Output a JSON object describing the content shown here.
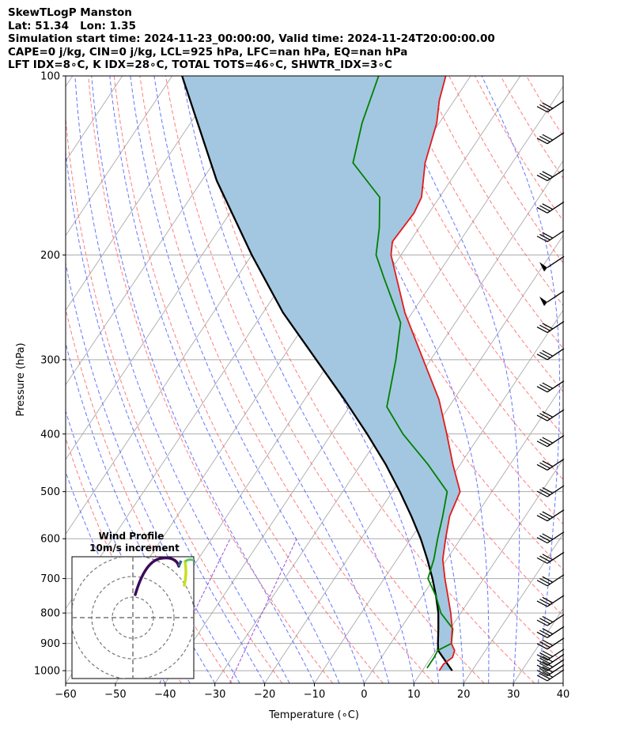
{
  "header": {
    "line1": "SkewTLogP Manston",
    "line2": "Lat: 51.34   Lon: 1.35",
    "line3": "Simulation start time: 2024-11-23_00:00:00, Valid time: 2024-11-24T20:00:00.00",
    "line4": "CAPE=0 j/kg, CIN=0 j/kg, LCL=925 hPa, LFC=nan hPa, EQ=nan hPa",
    "line5": "LFT IDX=8∘C, K IDX=28∘C, TOTAL TOTS=46∘C, SHWTR_IDX=3∘C"
  },
  "colors": {
    "temperature": "#e41a1c",
    "dewpoint": "#008000",
    "parcel": "#000000",
    "shade": "#a3c7e0",
    "isotherm": "#aaaaaa",
    "dry_adiabat": "#ff6666",
    "moist_adiabat": "#5566ff",
    "mixing_ratio": "#9a4fd6"
  },
  "chart_data": {
    "type": "line",
    "xlabel": "Temperature (∘C)",
    "ylabel": "Pressure (hPa)",
    "xlim": [
      -60,
      40
    ],
    "ylim": [
      1050,
      100
    ],
    "y_scale": "log",
    "x_ticks": [
      "−60",
      "−50",
      "−40",
      "−30",
      "−20",
      "−10",
      "0",
      "10",
      "20",
      "30",
      "40"
    ],
    "y_ticks": [
      "100",
      "200",
      "300",
      "400",
      "500",
      "600",
      "700",
      "800",
      "900",
      "1000"
    ],
    "series": [
      {
        "role": "temperature",
        "points": [
          [
            1000,
            13.4
          ],
          [
            975,
            13.4
          ],
          [
            950,
            14.3
          ],
          [
            925,
            13.8
          ],
          [
            900,
            12.2
          ],
          [
            850,
            10.4
          ],
          [
            800,
            8.0
          ],
          [
            750,
            5.2
          ],
          [
            700,
            2.2
          ],
          [
            650,
            -0.8
          ],
          [
            600,
            -3.0
          ],
          [
            550,
            -5.2
          ],
          [
            500,
            -6.4
          ],
          [
            450,
            -11.5
          ],
          [
            400,
            -16.8
          ],
          [
            350,
            -23.0
          ],
          [
            300,
            -31.5
          ],
          [
            250,
            -41.5
          ],
          [
            200,
            -52.0
          ],
          [
            190,
            -53.5
          ],
          [
            170,
            -53.0
          ],
          [
            160,
            -53.6
          ],
          [
            140,
            -57.5
          ],
          [
            120,
            -60.5
          ],
          [
            110,
            -63.0
          ],
          [
            100,
            -65.0
          ]
        ]
      },
      {
        "role": "dewpoint",
        "points": [
          [
            990,
            10.6
          ],
          [
            950,
            10.6
          ],
          [
            925,
            10.4
          ],
          [
            900,
            12.2
          ],
          [
            850,
            10.5
          ],
          [
            800,
            6.0
          ],
          [
            750,
            2.8
          ],
          [
            700,
            -1.2
          ],
          [
            650,
            -2.6
          ],
          [
            600,
            -4.6
          ],
          [
            550,
            -6.6
          ],
          [
            500,
            -9.0
          ],
          [
            450,
            -16.5
          ],
          [
            400,
            -25.6
          ],
          [
            360,
            -32.5
          ],
          [
            300,
            -37.0
          ],
          [
            260,
            -41.0
          ],
          [
            220,
            -50.0
          ],
          [
            200,
            -55.0
          ],
          [
            180,
            -58.0
          ],
          [
            160,
            -62.0
          ],
          [
            140,
            -72.0
          ],
          [
            120,
            -75.5
          ],
          [
            100,
            -78.5
          ]
        ]
      },
      {
        "role": "parcel",
        "points": [
          [
            1000,
            16.0
          ],
          [
            925,
            10.5
          ],
          [
            900,
            9.5
          ],
          [
            850,
            7.6
          ],
          [
            800,
            5.5
          ],
          [
            750,
            2.8
          ],
          [
            700,
            -0.3
          ],
          [
            650,
            -3.9
          ],
          [
            600,
            -8.0
          ],
          [
            550,
            -12.9
          ],
          [
            500,
            -18.5
          ],
          [
            450,
            -25.0
          ],
          [
            400,
            -32.8
          ],
          [
            350,
            -42.0
          ],
          [
            300,
            -53.0
          ],
          [
            250,
            -66.0
          ],
          [
            200,
            -80.0
          ],
          [
            150,
            -97.0
          ],
          [
            100,
            -118.0
          ]
        ]
      }
    ],
    "wind_barbs": {
      "pressure_levels": [
        1040,
        1020,
        1000,
        980,
        960,
        920,
        880,
        840,
        780,
        720,
        660,
        610,
        560,
        510,
        460,
        420,
        380,
        340,
        300,
        270,
        240,
        210,
        190,
        170,
        150,
        130,
        115
      ]
    },
    "hodograph": {
      "title": "Wind Profile",
      "subtitle": "10m/s increment"
    }
  }
}
